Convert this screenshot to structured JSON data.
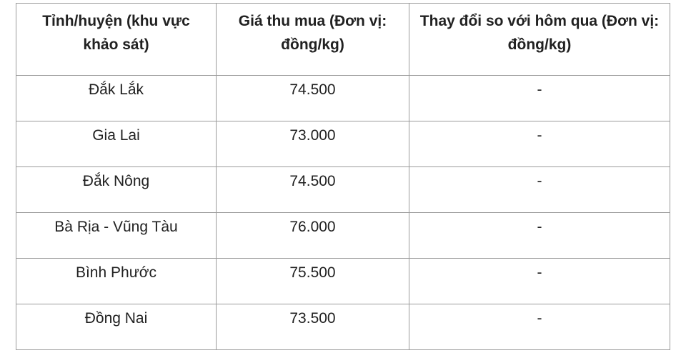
{
  "colors": {
    "border": "#9a9a9a",
    "text": "#212121",
    "cell_background": "#ffffff",
    "page_background": "#ffffff"
  },
  "chart_data": {
    "type": "table",
    "columns": [
      "Tỉnh/huyện (khu vực khảo sát)",
      "Giá thu mua (Đơn vị: đồng/kg)",
      "Thay đổi so với hôm qua (Đơn vị: đồng/kg)"
    ],
    "rows": [
      [
        "Đắk Lắk",
        "74.500",
        "-"
      ],
      [
        "Gia Lai",
        "73.000",
        "-"
      ],
      [
        "Đắk Nông",
        "74.500",
        "-"
      ],
      [
        "Bà Rịa - Vũng Tàu",
        "76.000",
        "-"
      ],
      [
        "Bình Phước",
        "75.500",
        "-"
      ],
      [
        "Đồng Nai",
        "73.500",
        "-"
      ]
    ]
  }
}
